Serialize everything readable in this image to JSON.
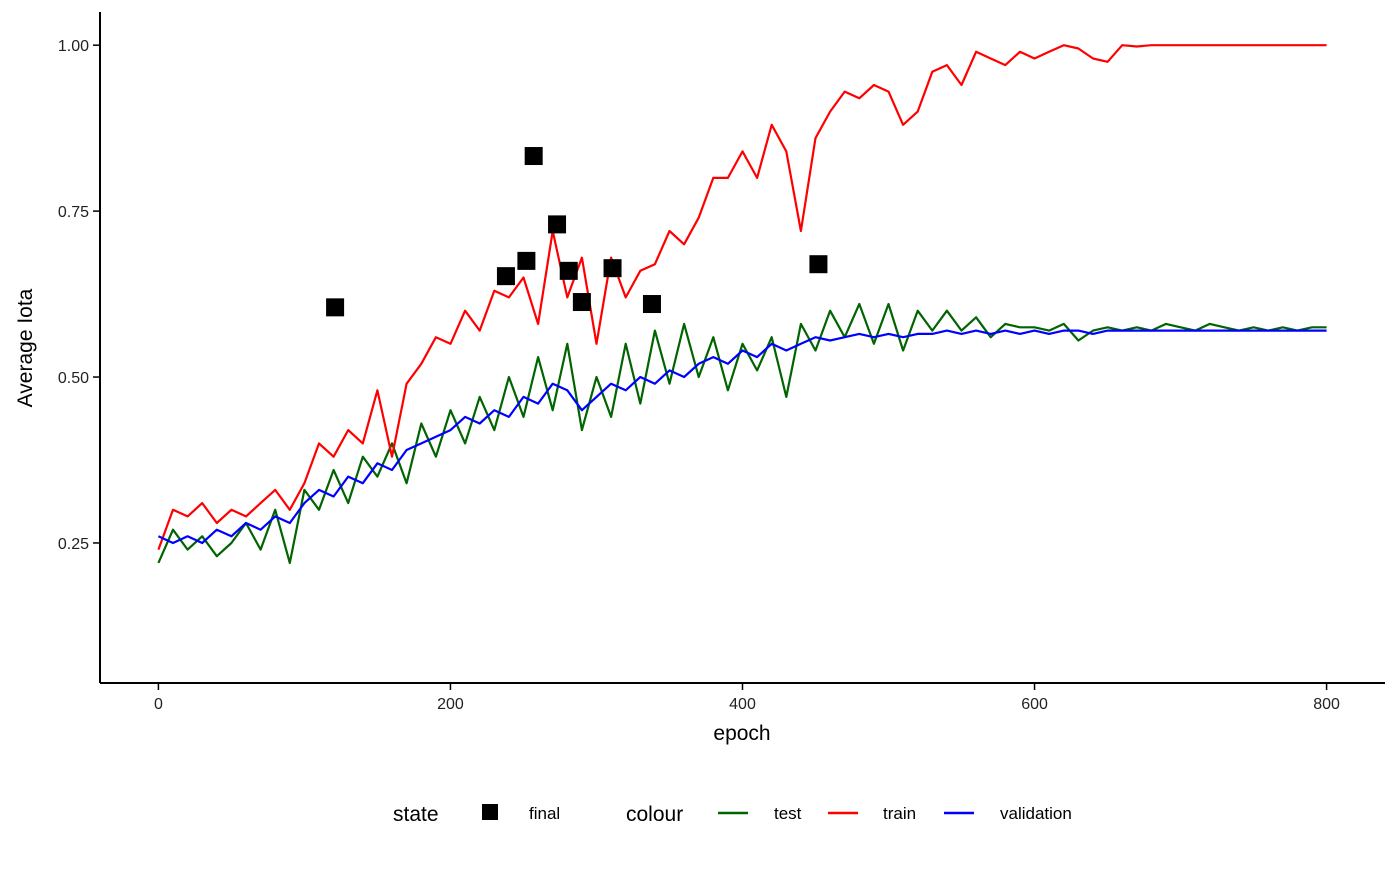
{
  "chart_data": {
    "type": "line",
    "title": "",
    "xlabel": "epoch",
    "ylabel": "Average Iota",
    "xlim": [
      -40,
      840
    ],
    "ylim": [
      0.039,
      1.05
    ],
    "x_ticks": [
      0,
      200,
      400,
      600,
      800
    ],
    "y_ticks": [
      0.25,
      0.5,
      0.75,
      1.0
    ],
    "y_tick_labels": [
      "0.25",
      "0.50",
      "0.75",
      "1.00"
    ],
    "grid": false,
    "legend_position": "bottom",
    "x": [
      0,
      10,
      20,
      30,
      40,
      50,
      60,
      70,
      80,
      90,
      100,
      110,
      120,
      130,
      140,
      150,
      160,
      170,
      180,
      190,
      200,
      210,
      220,
      230,
      240,
      250,
      260,
      270,
      280,
      290,
      300,
      310,
      320,
      330,
      340,
      350,
      360,
      370,
      380,
      390,
      400,
      410,
      420,
      430,
      440,
      450,
      460,
      470,
      480,
      490,
      500,
      510,
      520,
      530,
      540,
      550,
      560,
      570,
      580,
      590,
      600,
      610,
      620,
      630,
      640,
      650,
      660,
      670,
      680,
      690,
      700,
      710,
      720,
      730,
      740,
      750,
      760,
      770,
      780,
      790,
      800
    ],
    "series": [
      {
        "name": "test",
        "color": "#006400",
        "values": [
          0.22,
          0.27,
          0.24,
          0.26,
          0.23,
          0.25,
          0.28,
          0.24,
          0.3,
          0.22,
          0.33,
          0.3,
          0.36,
          0.31,
          0.38,
          0.35,
          0.4,
          0.34,
          0.43,
          0.38,
          0.45,
          0.4,
          0.47,
          0.42,
          0.5,
          0.44,
          0.53,
          0.45,
          0.55,
          0.42,
          0.5,
          0.44,
          0.55,
          0.46,
          0.57,
          0.49,
          0.58,
          0.5,
          0.56,
          0.48,
          0.55,
          0.51,
          0.56,
          0.47,
          0.58,
          0.54,
          0.6,
          0.56,
          0.61,
          0.55,
          0.61,
          0.54,
          0.6,
          0.57,
          0.6,
          0.57,
          0.59,
          0.56,
          0.58,
          0.575,
          0.575,
          0.57,
          0.58,
          0.555,
          0.57,
          0.575,
          0.57,
          0.575,
          0.57,
          0.58,
          0.575,
          0.57,
          0.58,
          0.575,
          0.57,
          0.575,
          0.57,
          0.575,
          0.57,
          0.575,
          0.575
        ]
      },
      {
        "name": "train",
        "color": "#ff0000",
        "values": [
          0.24,
          0.3,
          0.29,
          0.31,
          0.28,
          0.3,
          0.29,
          0.31,
          0.33,
          0.3,
          0.34,
          0.4,
          0.38,
          0.42,
          0.4,
          0.48,
          0.38,
          0.49,
          0.52,
          0.56,
          0.55,
          0.6,
          0.57,
          0.63,
          0.62,
          0.65,
          0.58,
          0.72,
          0.62,
          0.68,
          0.55,
          0.68,
          0.62,
          0.66,
          0.67,
          0.72,
          0.7,
          0.74,
          0.8,
          0.8,
          0.84,
          0.8,
          0.88,
          0.84,
          0.72,
          0.86,
          0.9,
          0.93,
          0.92,
          0.94,
          0.93,
          0.88,
          0.9,
          0.96,
          0.97,
          0.94,
          0.99,
          0.98,
          0.97,
          0.99,
          0.98,
          0.99,
          1.0,
          0.995,
          0.98,
          0.975,
          1.0,
          0.998,
          1.0,
          1.0,
          1.0,
          1.0,
          1.0,
          1.0,
          1.0,
          1.0,
          1.0,
          1.0,
          1.0,
          1.0,
          1.0
        ]
      },
      {
        "name": "validation",
        "color": "#0000ff",
        "values": [
          0.26,
          0.25,
          0.26,
          0.25,
          0.27,
          0.26,
          0.28,
          0.27,
          0.29,
          0.28,
          0.31,
          0.33,
          0.32,
          0.35,
          0.34,
          0.37,
          0.36,
          0.39,
          0.4,
          0.41,
          0.42,
          0.44,
          0.43,
          0.45,
          0.44,
          0.47,
          0.46,
          0.49,
          0.48,
          0.45,
          0.47,
          0.49,
          0.48,
          0.5,
          0.49,
          0.51,
          0.5,
          0.52,
          0.53,
          0.52,
          0.54,
          0.53,
          0.55,
          0.54,
          0.55,
          0.56,
          0.555,
          0.56,
          0.565,
          0.56,
          0.565,
          0.56,
          0.565,
          0.565,
          0.57,
          0.565,
          0.57,
          0.565,
          0.57,
          0.565,
          0.57,
          0.565,
          0.57,
          0.57,
          0.565,
          0.57,
          0.57,
          0.57,
          0.57,
          0.57,
          0.57,
          0.57,
          0.57,
          0.57,
          0.57,
          0.57,
          0.57,
          0.57,
          0.57,
          0.57,
          0.57
        ]
      }
    ],
    "points": {
      "name": "final",
      "color": "#000000",
      "shape": "square",
      "x": [
        121,
        238,
        252,
        257,
        273,
        281,
        290,
        311,
        338,
        452
      ],
      "y": [
        0.605,
        0.652,
        0.675,
        0.833,
        0.73,
        0.66,
        0.613,
        0.664,
        0.61,
        0.67
      ]
    },
    "legend": {
      "state_title": "state",
      "state_items": [
        "final"
      ],
      "colour_title": "colour",
      "colour_items": [
        "test",
        "train",
        "validation"
      ]
    }
  }
}
